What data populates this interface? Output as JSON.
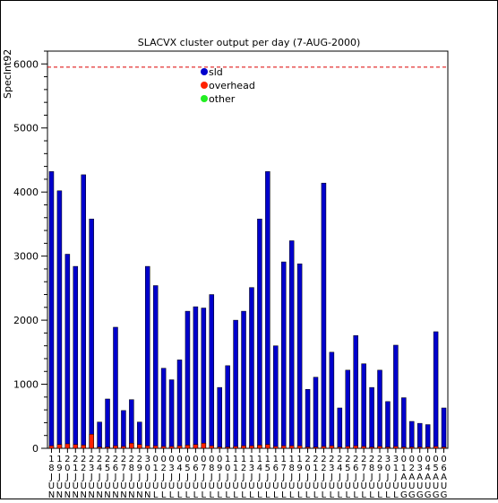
{
  "chart_data": {
    "type": "bar",
    "title": "SLACVX cluster output per day (7-AUG-2000)",
    "ylabel": "SpecInt92",
    "xlabel": "",
    "ylim": [
      0,
      6200
    ],
    "yticks": [
      0,
      1000,
      2000,
      3000,
      4000,
      5000,
      6000
    ],
    "reference_line": {
      "value": 5950,
      "color": "#dd0000",
      "style": "dashed"
    },
    "legend_position": "top-center",
    "grid": false,
    "categories": [
      "18JUN",
      "19JUN",
      "20JUN",
      "21JUN",
      "22JUN",
      "23JUN",
      "24JUN",
      "25JUN",
      "26JUN",
      "27JUN",
      "28JUN",
      "29JUN",
      "30JUN",
      "01JUL",
      "02JUL",
      "03JUL",
      "04JUL",
      "05JUL",
      "06JUL",
      "07JUL",
      "08JUL",
      "09JUL",
      "10JUL",
      "11JUL",
      "12JUL",
      "13JUL",
      "14JUL",
      "15JUL",
      "16JUL",
      "17JUL",
      "18JUL",
      "19JUL",
      "20JUL",
      "21JUL",
      "22JUL",
      "23JUL",
      "24JUL",
      "25JUL",
      "26JUL",
      "27JUL",
      "28JUL",
      "29JUL",
      "30JUL",
      "31JUL",
      "01AUG",
      "02AUG",
      "03AUG",
      "04AUG",
      "05AUG",
      "06AUG"
    ],
    "series": [
      {
        "name": "sld",
        "color": "#0000cc",
        "values": [
          4320,
          4020,
          3030,
          2840,
          4270,
          3580,
          410,
          770,
          1890,
          590,
          760,
          410,
          2840,
          2540,
          1250,
          1070,
          1380,
          2140,
          2210,
          2190,
          2400,
          950,
          1290,
          2000,
          2140,
          2510,
          3580,
          4320,
          1600,
          2910,
          3240,
          2880,
          920,
          1110,
          4140,
          1500,
          630,
          1220,
          1760,
          1320,
          950,
          1220,
          730,
          1610,
          790,
          420,
          390,
          370,
          1820,
          630
        ]
      },
      {
        "name": "overhead",
        "color": "#ff2200",
        "values": [
          40,
          60,
          70,
          60,
          50,
          220,
          20,
          20,
          40,
          30,
          80,
          60,
          40,
          40,
          30,
          30,
          40,
          50,
          60,
          80,
          40,
          20,
          20,
          30,
          40,
          40,
          50,
          60,
          30,
          40,
          40,
          40,
          20,
          20,
          30,
          40,
          20,
          30,
          40,
          30,
          20,
          30,
          20,
          30,
          20,
          20,
          20,
          20,
          30,
          20
        ]
      },
      {
        "name": "other",
        "color": "#22ee22",
        "values": [
          0,
          0,
          0,
          0,
          0,
          0,
          0,
          0,
          0,
          0,
          0,
          0,
          0,
          0,
          0,
          0,
          0,
          0,
          0,
          0,
          0,
          0,
          0,
          0,
          0,
          0,
          0,
          0,
          0,
          0,
          0,
          0,
          0,
          0,
          0,
          0,
          0,
          0,
          0,
          0,
          0,
          0,
          0,
          0,
          0,
          0,
          0,
          0,
          0,
          0
        ]
      }
    ]
  }
}
